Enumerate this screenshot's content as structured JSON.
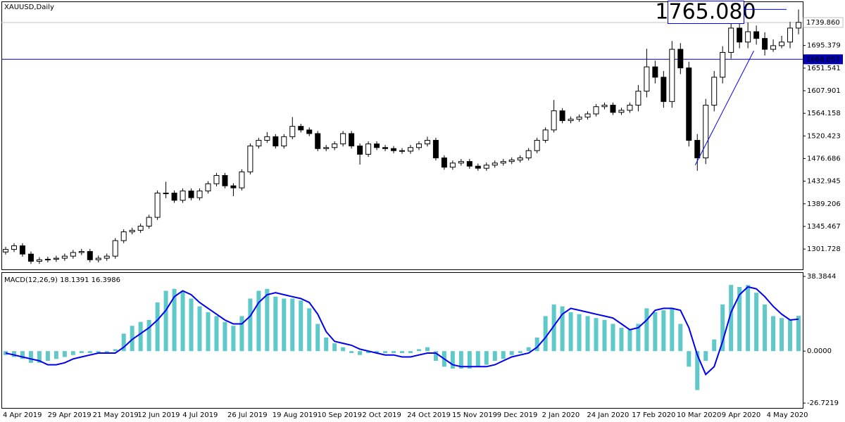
{
  "chart_data": [
    {
      "type": "candlestick",
      "title": "XAUUSD,Daily",
      "up_color": "#ffffff",
      "down_color": "#000000",
      "wick_color": "#000000",
      "grid": false,
      "open": [
        1296,
        1301,
        1308,
        1292,
        1278,
        1281,
        1282,
        1284,
        1288,
        1295,
        1297,
        1281,
        1284,
        1288,
        1318,
        1335,
        1338,
        1346,
        1363,
        1410,
        1410,
        1396,
        1414,
        1401,
        1414,
        1428,
        1444,
        1424,
        1420,
        1451,
        1501,
        1512,
        1519,
        1501,
        1519,
        1539,
        1532,
        1525,
        1496,
        1498,
        1505,
        1525,
        1501,
        1485,
        1505,
        1498,
        1496,
        1492,
        1491,
        1498,
        1505,
        1512,
        1478,
        1460,
        1468,
        1471,
        1462,
        1458,
        1464,
        1468,
        1471,
        1474,
        1478,
        1492,
        1512,
        1532,
        1569,
        1550,
        1553,
        1557,
        1563,
        1577,
        1580,
        1566,
        1570,
        1580,
        1607,
        1654,
        1634,
        1587,
        1688,
        1652,
        1512,
        1478,
        1580,
        1634,
        1682,
        1729,
        1702,
        1722,
        1709,
        1688,
        1695,
        1702,
        1729
      ],
      "high": [
        1306,
        1313,
        1313,
        1297,
        1286,
        1287,
        1289,
        1293,
        1300,
        1302,
        1302,
        1289,
        1293,
        1323,
        1340,
        1343,
        1351,
        1368,
        1415,
        1432,
        1415,
        1419,
        1419,
        1419,
        1433,
        1449,
        1449,
        1429,
        1456,
        1506,
        1517,
        1528,
        1524,
        1524,
        1557,
        1544,
        1537,
        1530,
        1503,
        1510,
        1530,
        1530,
        1506,
        1510,
        1510,
        1503,
        1501,
        1497,
        1503,
        1510,
        1519,
        1517,
        1483,
        1473,
        1476,
        1476,
        1467,
        1469,
        1473,
        1476,
        1479,
        1483,
        1497,
        1517,
        1537,
        1590,
        1574,
        1558,
        1562,
        1568,
        1582,
        1585,
        1585,
        1575,
        1585,
        1619,
        1689,
        1666,
        1646,
        1704,
        1700,
        1664,
        1524,
        1592,
        1646,
        1694,
        1747,
        1741,
        1740,
        1734,
        1721,
        1707,
        1714,
        1741,
        1765
      ],
      "low": [
        1291,
        1296,
        1287,
        1273,
        1273,
        1276,
        1277,
        1279,
        1283,
        1290,
        1276,
        1276,
        1279,
        1283,
        1313,
        1330,
        1333,
        1341,
        1358,
        1400,
        1391,
        1391,
        1396,
        1396,
        1409,
        1423,
        1419,
        1404,
        1415,
        1446,
        1496,
        1507,
        1496,
        1496,
        1514,
        1527,
        1520,
        1491,
        1491,
        1493,
        1500,
        1496,
        1465,
        1480,
        1493,
        1491,
        1487,
        1486,
        1486,
        1493,
        1500,
        1473,
        1455,
        1455,
        1463,
        1457,
        1453,
        1453,
        1459,
        1463,
        1466,
        1469,
        1473,
        1487,
        1507,
        1527,
        1545,
        1545,
        1548,
        1552,
        1558,
        1572,
        1561,
        1561,
        1565,
        1568,
        1595,
        1622,
        1575,
        1575,
        1640,
        1500,
        1453,
        1466,
        1568,
        1622,
        1670,
        1690,
        1690,
        1697,
        1676,
        1683,
        1690,
        1690,
        1717
      ],
      "close": [
        1301,
        1308,
        1292,
        1278,
        1281,
        1282,
        1284,
        1288,
        1295,
        1297,
        1281,
        1284,
        1288,
        1318,
        1335,
        1338,
        1346,
        1363,
        1410,
        1410,
        1396,
        1414,
        1401,
        1414,
        1428,
        1444,
        1424,
        1420,
        1451,
        1501,
        1512,
        1519,
        1501,
        1519,
        1539,
        1532,
        1525,
        1496,
        1498,
        1505,
        1525,
        1501,
        1485,
        1505,
        1498,
        1496,
        1492,
        1491,
        1498,
        1505,
        1512,
        1478,
        1460,
        1468,
        1471,
        1462,
        1458,
        1464,
        1468,
        1471,
        1474,
        1478,
        1492,
        1512,
        1532,
        1569,
        1550,
        1553,
        1557,
        1563,
        1577,
        1580,
        1566,
        1570,
        1580,
        1607,
        1654,
        1634,
        1587,
        1688,
        1652,
        1512,
        1478,
        1580,
        1634,
        1682,
        1729,
        1702,
        1722,
        1709,
        1688,
        1695,
        1702,
        1729,
        1740
      ],
      "ylim": [
        1262.4,
        1780.6
      ],
      "yticks": [
        1695.379,
        1651.541,
        1607.901,
        1564.158,
        1520.423,
        1476.686,
        1432.945,
        1389.206,
        1345.467,
        1301.728
      ],
      "xticks": [
        "4 Apr 2019",
        "29 Apr 2019",
        "21 May 2019",
        "12 Jun 2019",
        "4 Jul 2019",
        "26 Jul 2019",
        "19 Aug 2019",
        "10 Sep 2019",
        "2 Oct 2019",
        "24 Oct 2019",
        "15 Nov 2019",
        "9 Dec 2019",
        "2 Jan 2020",
        "24 Jan 2020",
        "17 Feb 2020",
        "10 Mar 2020",
        "9 Apr 2020",
        "4 May 2020"
      ],
      "price_line": {
        "value": 1739.86,
        "label": "1739.860"
      },
      "price_line_color": "#c0c0c0",
      "level": 1668.657,
      "level_color": "#0000b0",
      "trendline": [
        1464,
        1685
      ],
      "trendline_color": "#0000ff",
      "big_label": {
        "value": 1765.08,
        "label": "1765.080"
      },
      "big_label_color": "#0000ff"
    },
    {
      "type": "macd",
      "title": "MACD(12,26,9) 18.1391 16.3986",
      "bars": {
        "color": "#5fc8c8",
        "values": [
          -2,
          -3,
          -4,
          -6,
          -6,
          -5,
          -4,
          -3,
          -2,
          -1,
          -1,
          -1,
          -1,
          1,
          9,
          13,
          15,
          16,
          25,
          31,
          32,
          31,
          27,
          23,
          20,
          18,
          15,
          13,
          18,
          27,
          31,
          32,
          28,
          27,
          27,
          26,
          22,
          14,
          7,
          4,
          2,
          -1,
          -2,
          -1,
          -1,
          -1,
          -1,
          -1,
          -1,
          1,
          2,
          -5,
          -8,
          -9,
          -9,
          -9,
          -8,
          -7,
          -5,
          -4,
          -2,
          -1,
          2,
          7,
          18,
          24,
          23,
          20,
          19,
          18,
          17,
          16,
          14,
          12,
          11,
          14,
          22,
          20,
          21,
          22,
          14,
          -8,
          -20,
          -5,
          6,
          24,
          34,
          33,
          34,
          30,
          24,
          18,
          17,
          16,
          18.1391
        ]
      },
      "line": {
        "color": "#0000ee",
        "values": [
          -1,
          -2,
          -3,
          -4,
          -5,
          -7,
          -7,
          -6,
          -4,
          -3,
          -2,
          -1,
          -1,
          -1,
          2,
          6,
          9,
          12,
          16,
          21,
          28,
          31,
          29,
          25,
          22,
          19,
          16,
          14,
          14,
          18,
          25,
          29,
          30,
          29,
          28,
          27,
          25,
          19,
          10,
          5,
          4,
          3,
          1,
          0,
          -1,
          -2,
          -2,
          -3,
          -3,
          -2,
          -1,
          -1,
          -4,
          -7,
          -8,
          -8,
          -8,
          -8,
          -7,
          -5,
          -3,
          -2,
          -1,
          2,
          7,
          13,
          19,
          22,
          21,
          20,
          19,
          18,
          17,
          14,
          11,
          12,
          16,
          21,
          22,
          22,
          21,
          12,
          -2,
          -12,
          -8,
          5,
          20,
          29,
          33,
          32,
          28,
          23,
          19,
          16,
          16.3986
        ]
      },
      "ylim": [
        -29.2,
        40.2
      ],
      "yticks": [
        38.3844,
        {
          "value": 0,
          "label": "0.0000"
        },
        -26.7219
      ]
    }
  ]
}
